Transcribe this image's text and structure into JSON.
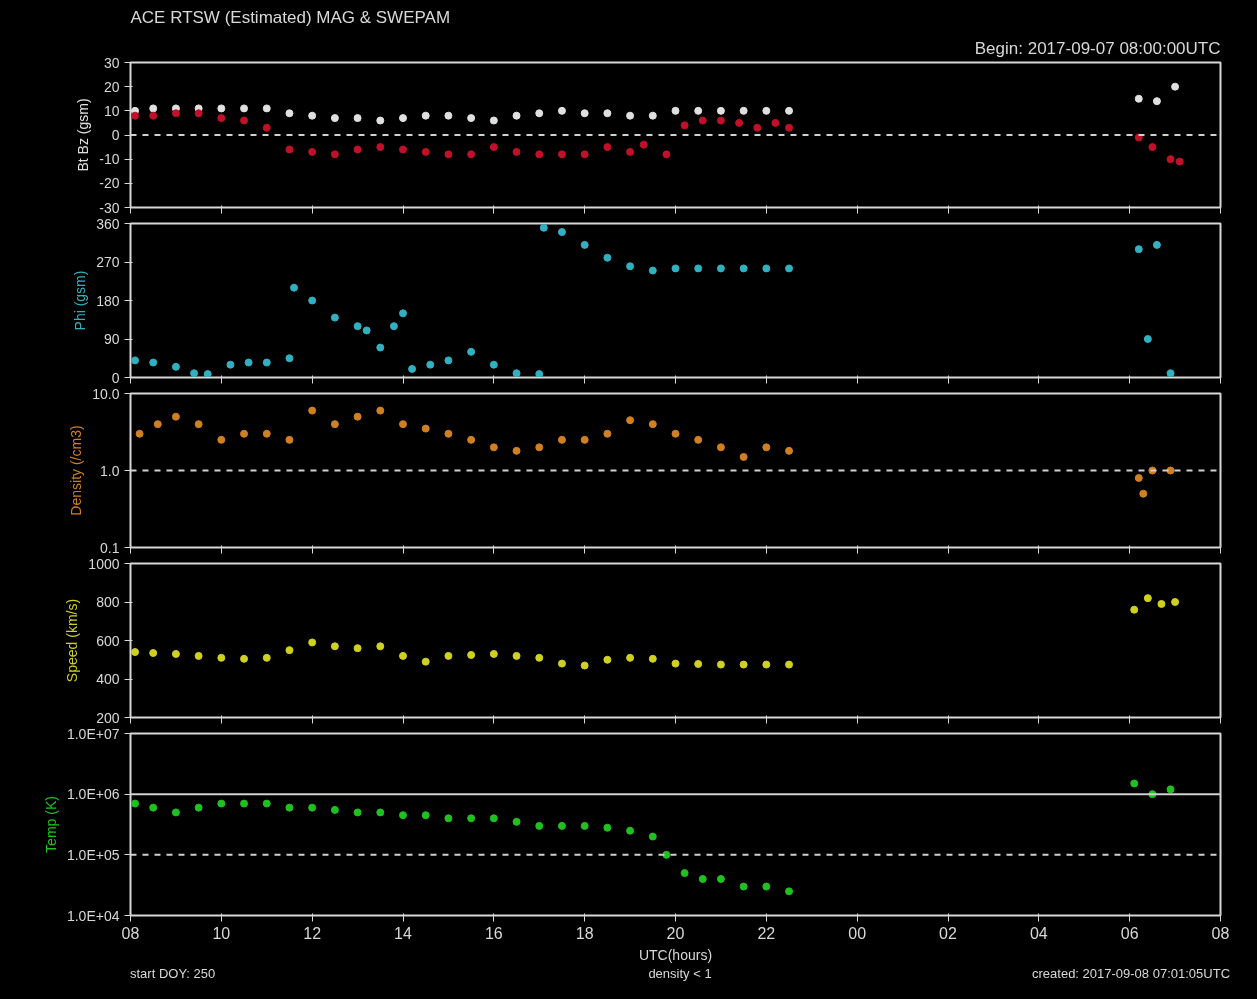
{
  "chart_data": [
    {
      "type": "scatter",
      "title": "ACE RTSW (Estimated) MAG & SWEPAM",
      "subtitle": "Begin: 2017-09-07 08:00:00UTC",
      "ylabel": "Bt Bz (gsm)",
      "marker": "circle",
      "tick_labels": "y",
      "xlim": [
        8,
        32
      ],
      "xticks": [
        {
          "value": 8,
          "label": null
        },
        {
          "value": 10,
          "label": null
        },
        {
          "value": 12,
          "label": null
        },
        {
          "value": 14,
          "label": null
        },
        {
          "value": 16,
          "label": null
        },
        {
          "value": 18,
          "label": null
        },
        {
          "value": 20,
          "label": null
        },
        {
          "value": 22,
          "label": null
        },
        {
          "value": 24,
          "label": null
        },
        {
          "value": 26,
          "label": null
        },
        {
          "value": 28,
          "label": null
        },
        {
          "value": 30,
          "label": null
        },
        {
          "value": 32,
          "label": null
        }
      ],
      "ylim": [
        -30,
        30
      ],
      "yticks": [
        -30,
        -20,
        -10,
        0,
        10,
        20,
        30
      ],
      "ref_lines": [
        {
          "axis": "y",
          "value": 0,
          "line_style": "dashed",
          "color": "#d0d0d0"
        }
      ],
      "series": [
        {
          "color": "#e0e0e0",
          "x": [
            8.1,
            8.5,
            9,
            9.5,
            10,
            10.5,
            11,
            11.5,
            12,
            12.5,
            13,
            13.5,
            14,
            14.5,
            15,
            15.5,
            16,
            16.5,
            17,
            17.5,
            18,
            18.5,
            19,
            19.5,
            20,
            20.5,
            21,
            21.5,
            22,
            22.5,
            30.2,
            30.6,
            31
          ],
          "values": [
            10,
            11,
            11,
            11,
            11,
            11,
            11,
            9,
            8,
            7,
            7,
            6,
            7,
            8,
            8,
            7,
            6,
            8,
            9,
            10,
            9,
            9,
            8,
            8,
            10,
            10,
            10,
            10,
            10,
            10,
            15,
            14,
            20
          ]
        },
        {
          "color": "#c0102a",
          "x": [
            8.1,
            8.5,
            9,
            9.5,
            10,
            10.5,
            11,
            11.5,
            12,
            12.5,
            13,
            13.5,
            14,
            14.5,
            15,
            15.5,
            16,
            16.5,
            17,
            17.5,
            18,
            18.5,
            19,
            19.3,
            19.8,
            20.2,
            20.6,
            21,
            21.4,
            21.8,
            22.2,
            22.5,
            30.2,
            30.5,
            30.9,
            31.1
          ],
          "values": [
            8,
            8,
            9,
            9,
            7,
            6,
            3,
            -6,
            -7,
            -8,
            -6,
            -5,
            -6,
            -7,
            -8,
            -8,
            -5,
            -7,
            -8,
            -8,
            -8,
            -5,
            -7,
            -4,
            -8,
            4,
            6,
            6,
            5,
            3,
            5,
            3,
            -1,
            -5,
            -10,
            -11
          ]
        }
      ]
    },
    {
      "type": "scatter",
      "ylabel": "Phi (gsm)",
      "marker": "circle",
      "tick_labels": "y",
      "xlim": [
        8,
        32
      ],
      "xticks": [
        {
          "value": 8,
          "label": null
        },
        {
          "value": 10,
          "label": null
        },
        {
          "value": 12,
          "label": null
        },
        {
          "value": 14,
          "label": null
        },
        {
          "value": 16,
          "label": null
        },
        {
          "value": 18,
          "label": null
        },
        {
          "value": 20,
          "label": null
        },
        {
          "value": 22,
          "label": null
        },
        {
          "value": 24,
          "label": null
        },
        {
          "value": 26,
          "label": null
        },
        {
          "value": 28,
          "label": null
        },
        {
          "value": 30,
          "label": null
        },
        {
          "value": 32,
          "label": null
        }
      ],
      "ylim": [
        0,
        360
      ],
      "yticks": [
        0,
        90,
        180,
        270,
        360
      ],
      "series": [
        {
          "color": "#30b0c0",
          "x": [
            8.1,
            8.5,
            9,
            9.4,
            9.7,
            10.2,
            10.6,
            11,
            11.5,
            11.6,
            12,
            12.5,
            13,
            13.2,
            13.5,
            13.8,
            14,
            14.2,
            14.6,
            15,
            15.5,
            16,
            16.5,
            17,
            17.1,
            17.5,
            18,
            18.5,
            19,
            19.5,
            20,
            20.5,
            21,
            21.5,
            22,
            22.5,
            30.2,
            30.4,
            30.6,
            30.9
          ],
          "values": [
            40,
            35,
            25,
            10,
            8,
            30,
            35,
            35,
            45,
            210,
            180,
            140,
            120,
            110,
            70,
            120,
            150,
            20,
            30,
            40,
            60,
            30,
            10,
            8,
            350,
            340,
            310,
            280,
            260,
            250,
            255,
            255,
            255,
            255,
            255,
            255,
            300,
            90,
            310,
            10
          ]
        }
      ]
    },
    {
      "type": "scatter",
      "ylabel": "Density (/cm3)",
      "marker": "circle",
      "tick_labels": "y",
      "log": true,
      "xlim": [
        8,
        32
      ],
      "xticks": [
        {
          "value": 8,
          "label": null
        },
        {
          "value": 10,
          "label": null
        },
        {
          "value": 12,
          "label": null
        },
        {
          "value": 14,
          "label": null
        },
        {
          "value": 16,
          "label": null
        },
        {
          "value": 18,
          "label": null
        },
        {
          "value": 20,
          "label": null
        },
        {
          "value": 22,
          "label": null
        },
        {
          "value": 24,
          "label": null
        },
        {
          "value": 26,
          "label": null
        },
        {
          "value": 28,
          "label": null
        },
        {
          "value": 30,
          "label": null
        },
        {
          "value": 32,
          "label": null
        }
      ],
      "ylim": [
        0.1,
        10
      ],
      "yticks": [
        0.1,
        {
          "value": 1,
          "label": "1.0"
        },
        {
          "value": 10,
          "label": "10.0"
        }
      ],
      "ref_lines": [
        {
          "axis": "y",
          "value": 1,
          "line_style": "dashed",
          "color": "#d0d0d0"
        }
      ],
      "series": [
        {
          "color": "#d08020",
          "x": [
            8.2,
            8.6,
            9,
            9.5,
            10,
            10.5,
            11,
            11.5,
            12,
            12.5,
            13,
            13.5,
            14,
            14.5,
            15,
            15.5,
            16,
            16.5,
            17,
            17.5,
            18,
            18.5,
            19,
            19.5,
            20,
            20.5,
            21,
            21.5,
            22,
            22.5,
            30.2,
            30.3,
            30.5,
            30.9
          ],
          "values": [
            3,
            4,
            5,
            4,
            2.5,
            3,
            3,
            2.5,
            6,
            4,
            5,
            6,
            4,
            3.5,
            3,
            2.5,
            2,
            1.8,
            2,
            2.5,
            2.5,
            3,
            4.5,
            4,
            3,
            2.5,
            2,
            1.5,
            2,
            1.8,
            0.8,
            0.5,
            1,
            1
          ]
        }
      ]
    },
    {
      "type": "scatter",
      "ylabel": "Speed (km/s)",
      "marker": "circle",
      "tick_labels": "y",
      "xlim": [
        8,
        32
      ],
      "xticks": [
        {
          "value": 8,
          "label": null
        },
        {
          "value": 10,
          "label": null
        },
        {
          "value": 12,
          "label": null
        },
        {
          "value": 14,
          "label": null
        },
        {
          "value": 16,
          "label": null
        },
        {
          "value": 18,
          "label": null
        },
        {
          "value": 20,
          "label": null
        },
        {
          "value": 22,
          "label": null
        },
        {
          "value": 24,
          "label": null
        },
        {
          "value": 26,
          "label": null
        },
        {
          "value": 28,
          "label": null
        },
        {
          "value": 30,
          "label": null
        },
        {
          "value": 32,
          "label": null
        }
      ],
      "ylim": [
        200,
        1000
      ],
      "yticks": [
        200,
        400,
        600,
        800,
        1000
      ],
      "series": [
        {
          "color": "#d0d020",
          "x": [
            8.1,
            8.5,
            9,
            9.5,
            10,
            10.5,
            11,
            11.5,
            12,
            12.5,
            13,
            13.5,
            14,
            14.5,
            15,
            15.5,
            16,
            16.5,
            17,
            17.5,
            18,
            18.5,
            19,
            19.5,
            20,
            20.5,
            21,
            21.5,
            22,
            22.5,
            30.1,
            30.4,
            30.7,
            31
          ],
          "values": [
            540,
            535,
            530,
            520,
            510,
            505,
            510,
            550,
            590,
            570,
            560,
            570,
            520,
            490,
            520,
            525,
            530,
            520,
            510,
            480,
            470,
            500,
            510,
            505,
            480,
            478,
            475,
            475,
            475,
            475,
            760,
            820,
            790,
            800
          ]
        }
      ]
    },
    {
      "type": "scatter",
      "ylabel": "Temp (K)",
      "xlabel": "UTC(hours)",
      "marker": "circle",
      "log": true,
      "xlim": [
        8,
        32
      ],
      "xticks": [
        {
          "value": 8,
          "label": "08"
        },
        {
          "value": 10,
          "label": "10"
        },
        {
          "value": 12,
          "label": "12"
        },
        {
          "value": 14,
          "label": "14"
        },
        {
          "value": 16,
          "label": "16"
        },
        {
          "value": 18,
          "label": "18"
        },
        {
          "value": 20,
          "label": "20"
        },
        {
          "value": 22,
          "label": "22"
        },
        {
          "value": 24,
          "label": "00"
        },
        {
          "value": 26,
          "label": "02"
        },
        {
          "value": 28,
          "label": "04"
        },
        {
          "value": 30,
          "label": "06"
        },
        {
          "value": 32,
          "label": "08"
        }
      ],
      "ylim": [
        10000,
        10000000
      ],
      "yticks": [
        {
          "value": 10000,
          "label": "1.0E+04"
        },
        {
          "value": 100000,
          "label": "1.0E+05"
        },
        {
          "value": 1000000,
          "label": "1.0E+06"
        },
        {
          "value": 10000000,
          "label": "1.0E+07"
        }
      ],
      "ref_lines": [
        {
          "axis": "y",
          "value": 1000000,
          "line_style": "solid",
          "color": "#d0d0d0"
        },
        {
          "axis": "y",
          "value": 100000,
          "line_style": "dashed",
          "color": "#d0d0d0"
        }
      ],
      "annotations": [
        "start DOY: 250",
        "density < 1",
        "created: 2017-09-08 07:01:05UTC"
      ],
      "series": [
        {
          "color": "#20c020",
          "x": [
            8.1,
            8.5,
            9,
            9.5,
            10,
            10.5,
            11,
            11.5,
            12,
            12.5,
            13,
            13.5,
            14,
            14.5,
            15,
            15.5,
            16,
            16.5,
            17,
            17.5,
            18,
            18.5,
            19,
            19.5,
            19.8,
            20.2,
            20.6,
            21,
            21.5,
            22,
            22.5,
            30.1,
            30.5,
            30.9
          ],
          "values": [
            700000,
            600000,
            500000,
            600000,
            700000,
            700000,
            700000,
            600000,
            600000,
            550000,
            500000,
            500000,
            450000,
            450000,
            400000,
            400000,
            400000,
            350000,
            300000,
            300000,
            300000,
            280000,
            250000,
            200000,
            100000,
            50000,
            40000,
            40000,
            30000,
            30000,
            25000,
            1500000,
            1000000,
            1200000
          ]
        }
      ]
    }
  ]
}
